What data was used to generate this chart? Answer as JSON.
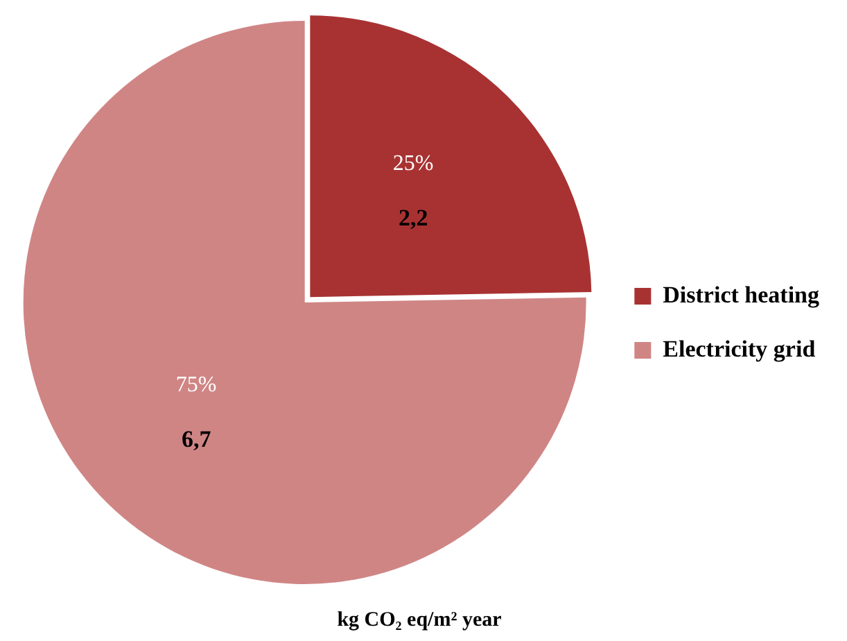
{
  "chart_data": {
    "type": "pie",
    "xlabel": "kg CO₂ eq/m² year",
    "categories": [
      "District heating",
      "Electricity grid"
    ],
    "values": [
      2.2,
      6.7
    ],
    "value_labels": [
      "2,2",
      "6,7"
    ],
    "colors": [
      "#a83232",
      "#d08585"
    ],
    "annotations": [
      "25%",
      "75%"
    ],
    "legend": "right"
  }
}
